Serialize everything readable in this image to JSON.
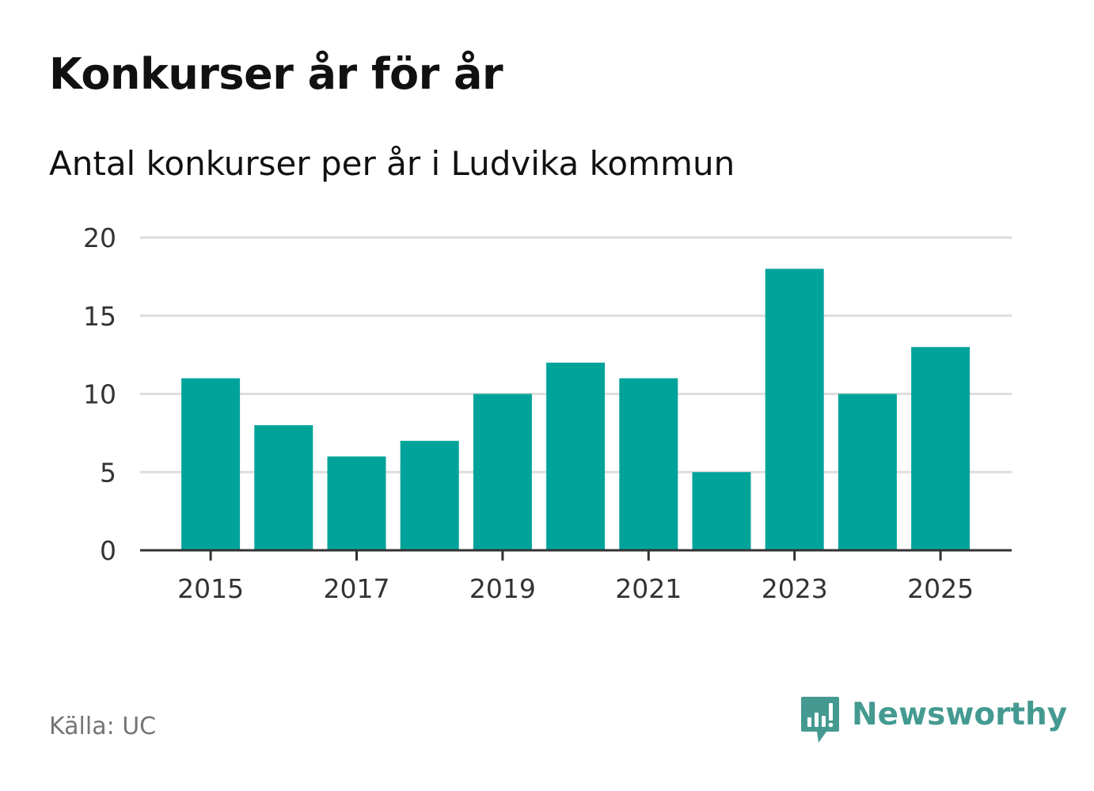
{
  "title": "Konkurser år för år",
  "subtitle": "Antal konkurser per år i Ludvika kommun",
  "source": "Källa: UC",
  "brand": {
    "name": "Newsworthy",
    "icon": "newsworthy-logo-icon",
    "color": "#449a91"
  },
  "colors": {
    "bar": "#00a39a",
    "grid": "#dddddd",
    "axis": "#333333"
  },
  "chart_data": {
    "type": "bar",
    "title": "Konkurser år för år",
    "subtitle": "Antal konkurser per år i Ludvika kommun",
    "categories": [
      "2015",
      "2016",
      "2017",
      "2018",
      "2019",
      "2020",
      "2021",
      "2022",
      "2023",
      "2024",
      "2025"
    ],
    "values": [
      11,
      8,
      6,
      7,
      10,
      12,
      11,
      5,
      18,
      10,
      13
    ],
    "x_tick_labels": [
      "2015",
      "2017",
      "2019",
      "2021",
      "2023",
      "2025"
    ],
    "y_ticks": [
      0,
      5,
      10,
      15,
      20
    ],
    "ylim": [
      0,
      20
    ],
    "xlabel": "",
    "ylabel": "",
    "grid": true,
    "legend": false
  }
}
